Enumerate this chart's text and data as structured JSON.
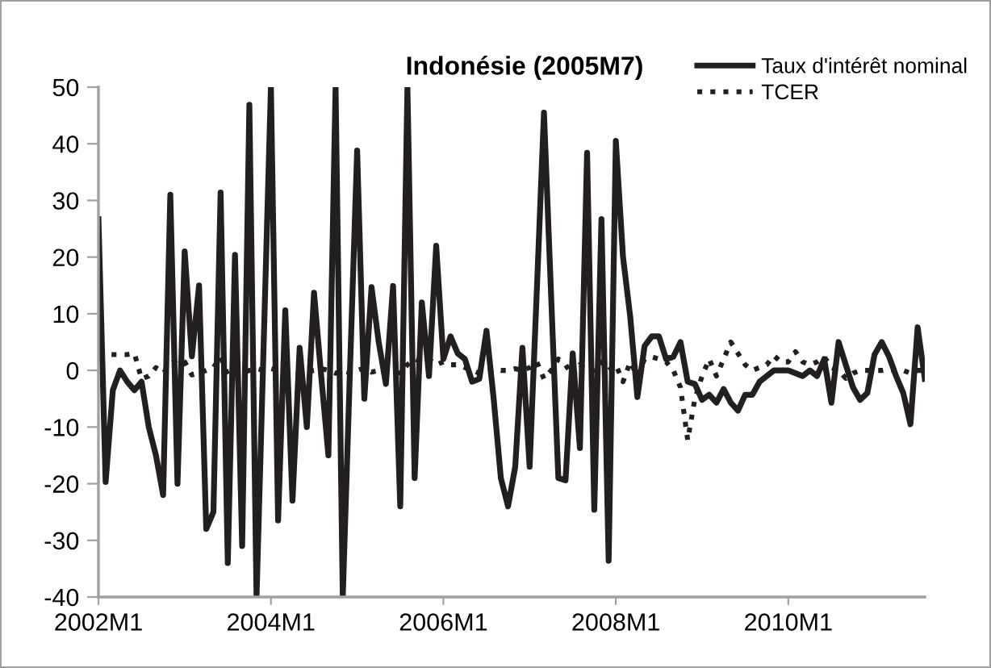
{
  "chart_data": {
    "type": "line",
    "title": "Indonésie (2005M7)",
    "categories": [
      "2002M1",
      null,
      null,
      null,
      null,
      null,
      null,
      null,
      null,
      null,
      null,
      null,
      null,
      null,
      null,
      null,
      null,
      null,
      null,
      null,
      null,
      null,
      null,
      null,
      "2004M1",
      null,
      null,
      null,
      null,
      null,
      null,
      null,
      null,
      null,
      null,
      null,
      null,
      null,
      null,
      null,
      null,
      null,
      null,
      null,
      null,
      null,
      null,
      null,
      "2006M1",
      null,
      null,
      null,
      null,
      null,
      null,
      null,
      null,
      null,
      null,
      null,
      null,
      null,
      null,
      null,
      null,
      null,
      null,
      null,
      null,
      null,
      null,
      null,
      "2008M1",
      null,
      null,
      null,
      null,
      null,
      null,
      null,
      null,
      null,
      null,
      null,
      null,
      null,
      null,
      null,
      null,
      null,
      null,
      null,
      null,
      null,
      null,
      null,
      "2010M1",
      null,
      null,
      null,
      null,
      null,
      null,
      null,
      null,
      null,
      null,
      null,
      null,
      null,
      null,
      null,
      null,
      null,
      null,
      null
    ],
    "series": [
      {
        "name": "Taux d'intérêt nominal",
        "color": "#231f20",
        "line_style": "solid",
        "values": [
          26.7,
          -19.7,
          -3.5,
          0,
          -2,
          -3.5,
          -2,
          -10,
          -15,
          -22,
          31,
          -20,
          21,
          2.5,
          15,
          -28,
          -25,
          31.4,
          -34,
          20.4,
          -31,
          46.9,
          -40,
          5,
          50,
          -26.5,
          10.6,
          -23,
          4,
          -10,
          13.7,
          -1,
          -15,
          50,
          -40,
          0,
          38.8,
          -5,
          14.7,
          5,
          -2.4,
          14.9,
          -24,
          50,
          -19,
          12,
          -1,
          22,
          2,
          6,
          3,
          2,
          -2,
          -1.5,
          7,
          -5,
          -19,
          -24,
          -17,
          4,
          -17,
          14,
          45.5,
          13,
          -19,
          -19.4,
          3,
          -13.7,
          38.4,
          -24.6,
          26.7,
          -33.6,
          40.5,
          20,
          9.5,
          -4.7,
          4.3,
          6,
          6,
          2,
          2.4,
          5,
          -2,
          -2.4,
          -5.2,
          -4.3,
          -5.7,
          -3.3,
          -5.7,
          -7.1,
          -4.3,
          -4.3,
          -2,
          -1,
          0,
          0,
          0,
          -0.5,
          -1,
          0,
          -1,
          2,
          -5.7,
          5,
          1,
          -3,
          -5.2,
          -4,
          2.8,
          5,
          2.5,
          -1,
          -4,
          -9.5,
          7.6,
          -1.5
        ]
      },
      {
        "name": "TCER",
        "color": "#231f20",
        "line_style": "dotted",
        "values": [
          2.8,
          2.8,
          2.8,
          2.8,
          2.8,
          3,
          -1.5,
          -1,
          0.5,
          -0.5,
          1,
          2,
          1.5,
          -0.8,
          -0.5,
          0,
          0.5,
          2.4,
          -0.8,
          0,
          -0.5,
          0,
          0.3,
          0,
          0.3,
          0,
          -0.5,
          0,
          -0.3,
          -0.2,
          0,
          0.3,
          0,
          -0.5,
          0,
          -0.4,
          0,
          0.4,
          -0.3,
          0,
          0.3,
          -0.2,
          -0.5,
          1,
          2,
          1.5,
          2,
          1,
          1.5,
          1,
          1,
          0.5,
          0,
          -0.5,
          0,
          0.3,
          0,
          0,
          0.3,
          0,
          0.5,
          1.5,
          -1.5,
          0,
          2,
          1,
          -1,
          1,
          0,
          0,
          1.5,
          0,
          1,
          -2,
          1.5,
          -1,
          2,
          2.4,
          2,
          1.5,
          0,
          -3,
          -12.3,
          -5,
          -1,
          2,
          -1,
          2,
          5,
          3,
          1,
          0,
          0.5,
          1,
          2.6,
          1.5,
          1.5,
          3.3,
          1.5,
          1,
          1.5,
          2.4,
          0.5,
          0,
          -1.4,
          -0.5,
          0,
          0,
          0,
          0,
          0.2,
          0,
          0,
          -0.5,
          0,
          0
        ]
      }
    ],
    "ylim": [
      -40,
      50
    ],
    "yticks": [
      -40,
      -30,
      -20,
      -10,
      0,
      10,
      20,
      30,
      40,
      50
    ],
    "grid": false,
    "legend": "top right"
  }
}
